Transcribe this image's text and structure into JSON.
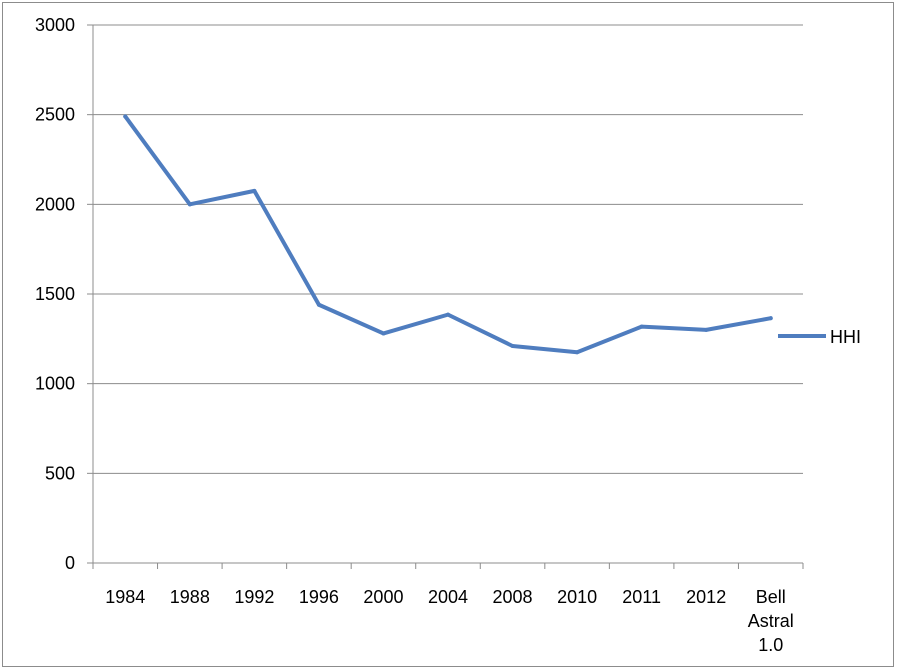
{
  "chart_data": {
    "type": "line",
    "title": "",
    "xlabel": "",
    "ylabel": "",
    "categories": [
      "1984",
      "1988",
      "1992",
      "1996",
      "2000",
      "2004",
      "2008",
      "2010",
      "2011",
      "2012",
      "Bell Astral 1.0"
    ],
    "category_lines": [
      [
        "1984"
      ],
      [
        "1988"
      ],
      [
        "1992"
      ],
      [
        "1996"
      ],
      [
        "2000"
      ],
      [
        "2004"
      ],
      [
        "2008"
      ],
      [
        "2010"
      ],
      [
        "2011"
      ],
      [
        "2012"
      ],
      [
        "Bell",
        "Astral",
        "1.0"
      ]
    ],
    "series": [
      {
        "name": "HHI",
        "values": [
          2490,
          2000,
          2075,
          1440,
          1280,
          1385,
          1210,
          1175,
          1318,
          1300,
          1365
        ],
        "color": "#4f7dbf"
      }
    ],
    "ylim": [
      0,
      3000
    ],
    "yticks": [
      0,
      500,
      1000,
      1500,
      2000,
      2500,
      3000
    ],
    "grid": true,
    "legend_position": "right"
  }
}
